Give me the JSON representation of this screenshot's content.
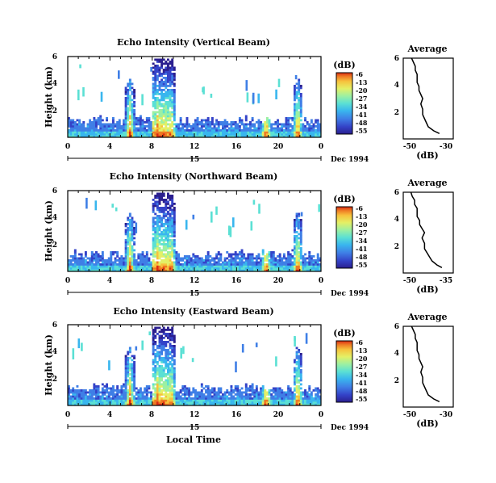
{
  "chart_data": [
    {
      "type": "heatmap",
      "title": "Echo Intensity (Vertical Beam)",
      "ylabel": "Height (km)",
      "xlim": [
        0,
        24
      ],
      "ylim": [
        0,
        6
      ],
      "xticks": [
        "0",
        "4",
        "8",
        "12",
        "16",
        "20",
        "0"
      ],
      "yticks": [
        "2",
        "4",
        "6"
      ],
      "day_label": "15",
      "date_label": "Dec 1994",
      "colorbar": {
        "unit": "(dB)",
        "labels": [
          "-6",
          "-13",
          "-20",
          "-27",
          "-34",
          "-41",
          "-48",
          "-55"
        ]
      },
      "storms": [
        [
          5.9,
          4.4
        ],
        [
          8.5,
          5.8
        ],
        [
          8.8,
          6.0
        ],
        [
          9.2,
          6.0
        ],
        [
          9.8,
          5.9
        ],
        [
          18.8,
          1.0
        ],
        [
          21.8,
          4.5
        ]
      ]
    },
    {
      "type": "heatmap",
      "title": "Echo Intensity (Northward Beam)",
      "ylabel": "Height (km)",
      "xlim": [
        0,
        24
      ],
      "ylim": [
        0,
        6
      ],
      "xticks": [
        "0",
        "4",
        "8",
        "12",
        "16",
        "20",
        "0"
      ],
      "yticks": [
        "2",
        "4",
        "6"
      ],
      "day_label": "15",
      "date_label": "Dec 1994",
      "colorbar": {
        "unit": "(dB)",
        "labels": [
          "-6",
          "-13",
          "-20",
          "-27",
          "-34",
          "-41",
          "-48",
          "-55"
        ]
      },
      "storms": [
        [
          5.9,
          4.4
        ],
        [
          8.5,
          5.8
        ],
        [
          8.8,
          6.0
        ],
        [
          9.2,
          6.0
        ],
        [
          9.8,
          5.9
        ],
        [
          18.8,
          1.0
        ],
        [
          21.8,
          4.5
        ]
      ]
    },
    {
      "type": "heatmap",
      "title": "Echo Intensity (Eastward Beam)",
      "ylabel": "Height (km)",
      "xlabel": "Local Time",
      "xlim": [
        0,
        24
      ],
      "ylim": [
        0,
        6
      ],
      "xticks": [
        "0",
        "4",
        "8",
        "12",
        "16",
        "20",
        "0"
      ],
      "yticks": [
        "2",
        "4",
        "6"
      ],
      "day_label": "15",
      "date_label": "Dec 1994",
      "colorbar": {
        "unit": "(dB)",
        "labels": [
          "-6",
          "-13",
          "-20",
          "-27",
          "-34",
          "-41",
          "-48",
          "-55"
        ]
      },
      "storms": [
        [
          5.9,
          4.4
        ],
        [
          8.5,
          5.8
        ],
        [
          8.8,
          6.0
        ],
        [
          9.2,
          6.0
        ],
        [
          9.8,
          5.9
        ],
        [
          18.8,
          1.0
        ],
        [
          21.8,
          4.5
        ]
      ]
    },
    {
      "type": "line",
      "title": "Average",
      "xlabel": "(dB)",
      "xlim": [
        -50,
        -30
      ],
      "ylim": [
        0,
        6
      ],
      "xticks": [
        "-50",
        "-30"
      ],
      "yticks": [
        "2",
        "4",
        "6"
      ],
      "x": [
        -34,
        -37,
        -40,
        -41,
        -42,
        -43,
        -43,
        -44,
        -43,
        -44,
        -45,
        -45,
        -46,
        -46,
        -46,
        -47,
        -47,
        -48,
        -49
      ],
      "y": [
        0.4,
        0.6,
        0.9,
        1.2,
        1.5,
        1.8,
        2.2,
        2.6,
        3.0,
        3.3,
        3.6,
        3.9,
        4.2,
        4.5,
        4.8,
        5.1,
        5.4,
        5.7,
        6.0
      ]
    },
    {
      "type": "line",
      "title": "Average",
      "xlabel": "(dB)",
      "xlim": [
        -50,
        -35
      ],
      "ylim": [
        0,
        6
      ],
      "xticks": [
        "-50",
        "-35"
      ],
      "yticks": [
        "2",
        "4",
        "6"
      ],
      "x": [
        -37,
        -39,
        -41,
        -42,
        -43,
        -44,
        -44,
        -45,
        -44,
        -45,
        -46,
        -46,
        -47,
        -47,
        -47,
        -48,
        -48,
        -49,
        -49.5
      ],
      "y": [
        0.4,
        0.6,
        0.9,
        1.2,
        1.5,
        1.8,
        2.2,
        2.6,
        3.0,
        3.3,
        3.6,
        3.9,
        4.2,
        4.5,
        4.8,
        5.1,
        5.4,
        5.7,
        6.0
      ]
    },
    {
      "type": "line",
      "title": "Average",
      "xlabel": "(dB)",
      "xlim": [
        -50,
        -30
      ],
      "ylim": [
        0,
        6
      ],
      "xticks": [
        "-50",
        "-30"
      ],
      "yticks": [
        "2",
        "4",
        "6"
      ],
      "x": [
        -34,
        -37,
        -40,
        -41,
        -42,
        -43,
        -43,
        -44,
        -43,
        -44,
        -45,
        -45,
        -46,
        -46,
        -46,
        -47,
        -47,
        -48,
        -49
      ],
      "y": [
        0.4,
        0.6,
        0.9,
        1.2,
        1.5,
        1.8,
        2.2,
        2.6,
        3.0,
        3.3,
        3.6,
        3.9,
        4.2,
        4.5,
        4.8,
        5.1,
        5.4,
        5.7,
        6.0
      ]
    }
  ],
  "colormap": [
    "#2b1f8f",
    "#3443c8",
    "#3f7fe6",
    "#39b6ee",
    "#5be0d4",
    "#9cf0a2",
    "#e4f066",
    "#f7c23c",
    "#ee7a24",
    "#d92a14"
  ]
}
